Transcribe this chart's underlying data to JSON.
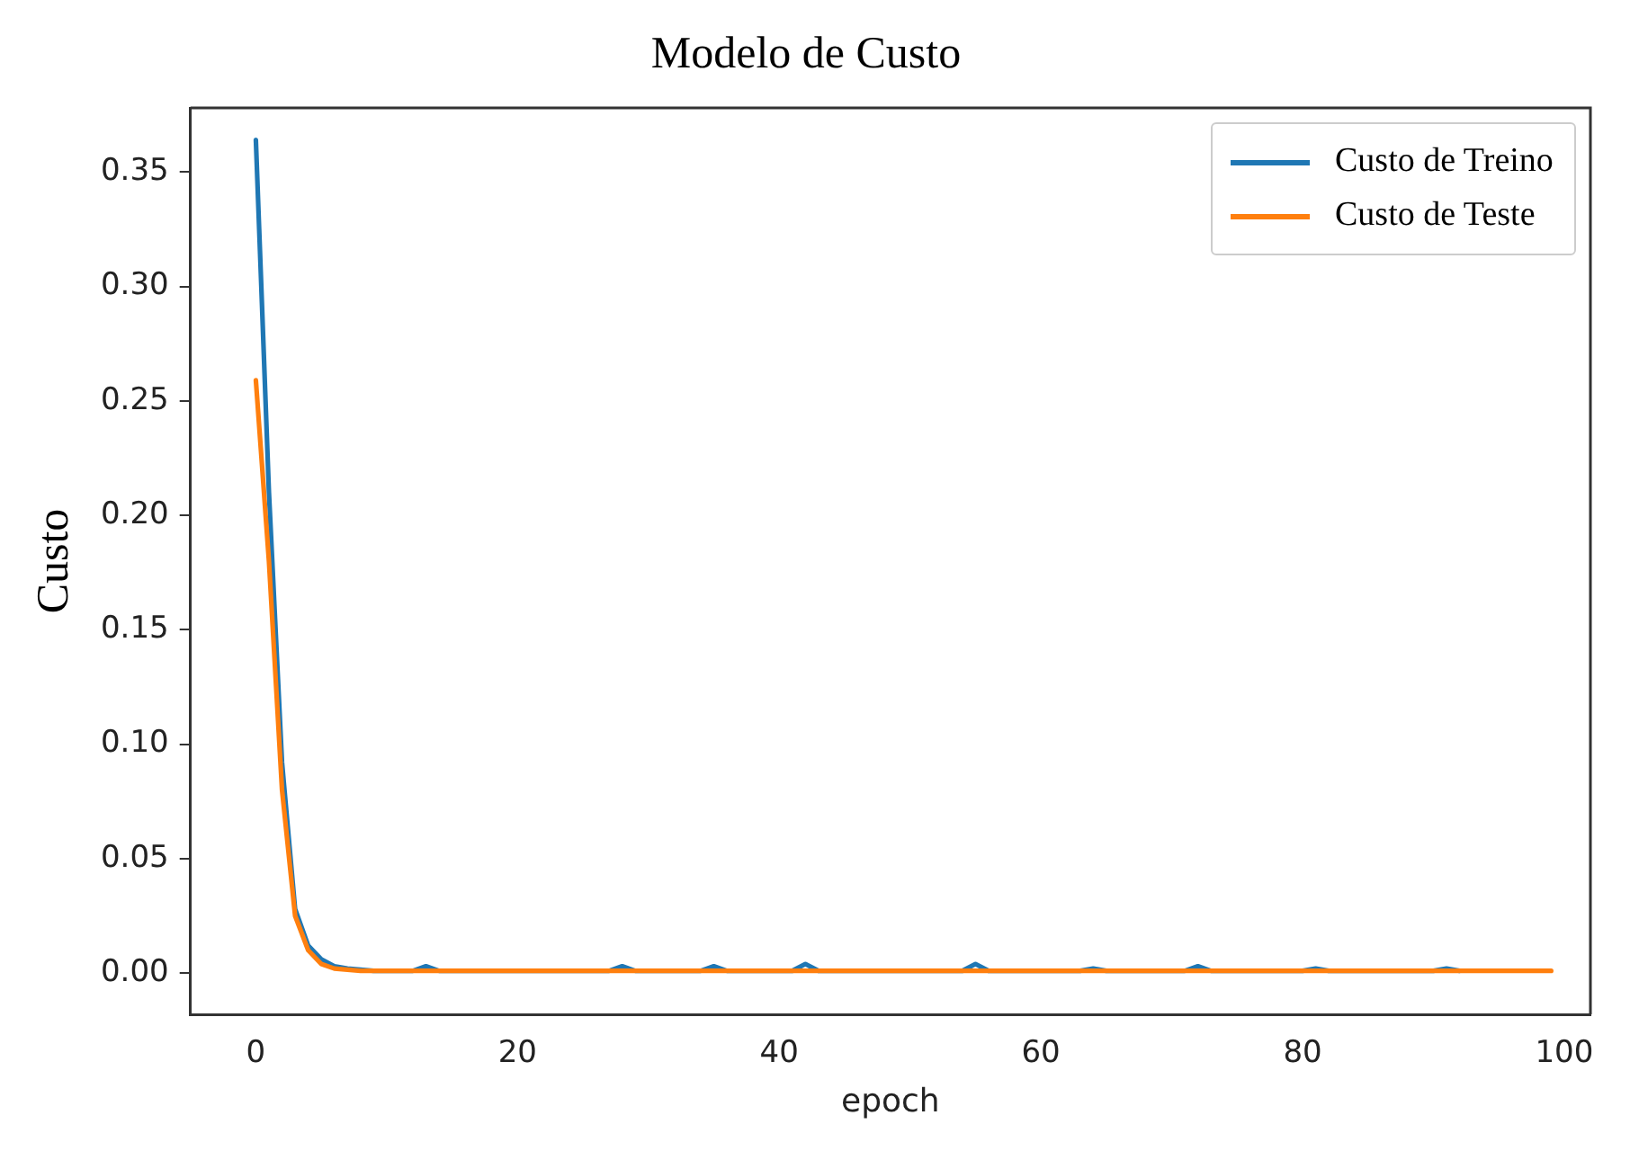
{
  "chart_data": {
    "type": "line",
    "title": "Modelo de Custo",
    "xlabel": "epoch",
    "ylabel": "Custo",
    "x": [
      0,
      1,
      2,
      3,
      4,
      5,
      6,
      7,
      8,
      9,
      10,
      11,
      12,
      13,
      14,
      15,
      16,
      17,
      18,
      19,
      20,
      21,
      22,
      23,
      24,
      25,
      26,
      27,
      28,
      29,
      30,
      31,
      32,
      33,
      34,
      35,
      36,
      37,
      38,
      39,
      40,
      41,
      42,
      43,
      44,
      45,
      46,
      47,
      48,
      49,
      50,
      51,
      52,
      53,
      54,
      55,
      56,
      57,
      58,
      59,
      60,
      61,
      62,
      63,
      64,
      65,
      66,
      67,
      68,
      69,
      70,
      71,
      72,
      73,
      74,
      75,
      76,
      77,
      78,
      79,
      80,
      81,
      82,
      83,
      84,
      85,
      86,
      87,
      88,
      89,
      90,
      91,
      92,
      93,
      94,
      95,
      96,
      97,
      98,
      99
    ],
    "series": [
      {
        "name": "Custo de Treino",
        "color": "#1f77b4",
        "values": [
          0.364,
          0.21,
          0.092,
          0.028,
          0.012,
          0.006,
          0.003,
          0.002,
          0.0015,
          0.001,
          null,
          null,
          0.001,
          0.003,
          0.001,
          null,
          null,
          null,
          null,
          null,
          null,
          null,
          null,
          null,
          null,
          null,
          null,
          0.001,
          0.003,
          0.001,
          null,
          null,
          null,
          null,
          0.001,
          0.003,
          0.001,
          null,
          null,
          null,
          null,
          0.001,
          0.004,
          0.001,
          null,
          null,
          null,
          null,
          null,
          null,
          null,
          null,
          null,
          null,
          0.001,
          0.004,
          0.001,
          null,
          null,
          null,
          null,
          null,
          null,
          0.001,
          0.002,
          0.001,
          null,
          null,
          null,
          null,
          null,
          0.001,
          0.003,
          0.001,
          null,
          null,
          null,
          null,
          null,
          null,
          0.001,
          0.002,
          0.001,
          null,
          null,
          null,
          null,
          null,
          null,
          null,
          0.001,
          0.002,
          0.001,
          null,
          null,
          null,
          null,
          null,
          null,
          null
        ]
      },
      {
        "name": "Custo de Teste",
        "color": "#ff7f0e",
        "values": [
          0.259,
          0.18,
          0.08,
          0.025,
          0.01,
          0.004,
          0.002,
          0.0015,
          0.001,
          0.001,
          0.001,
          0.001,
          0.001,
          0.001,
          0.001,
          0.001,
          0.001,
          0.001,
          0.001,
          0.001,
          0.001,
          0.001,
          0.001,
          0.001,
          0.001,
          0.001,
          0.001,
          0.001,
          0.001,
          0.001,
          0.001,
          0.001,
          0.001,
          0.001,
          0.001,
          0.001,
          0.001,
          0.001,
          0.001,
          0.001,
          0.001,
          0.001,
          0.001,
          0.001,
          0.001,
          0.001,
          0.001,
          0.001,
          0.001,
          0.001,
          0.001,
          0.001,
          0.001,
          0.001,
          0.001,
          0.001,
          0.001,
          0.001,
          0.001,
          0.001,
          0.001,
          0.001,
          0.001,
          0.001,
          0.001,
          0.001,
          0.001,
          0.001,
          0.001,
          0.001,
          0.001,
          0.001,
          0.001,
          0.001,
          0.001,
          0.001,
          0.001,
          0.001,
          0.001,
          0.001,
          0.001,
          0.001,
          0.001,
          0.001,
          0.001,
          0.001,
          0.001,
          0.001,
          0.001,
          0.001,
          0.001,
          0.001,
          0.001,
          0.001,
          0.001,
          0.001,
          0.001,
          0.001,
          0.001,
          0.001
        ]
      }
    ],
    "xlim": [
      -5,
      102
    ],
    "xticks": [
      0,
      20,
      40,
      60,
      80,
      100
    ],
    "ylim": [
      -0.018,
      0.378
    ],
    "yticks": [
      {
        "value": 0,
        "label": "0.00"
      },
      {
        "value": 0.05,
        "label": "0.05"
      },
      {
        "value": 0.1,
        "label": "0.10"
      },
      {
        "value": 0.15,
        "label": "0.15"
      },
      {
        "value": 0.2,
        "label": "0.20"
      },
      {
        "value": 0.25,
        "label": "0.25"
      },
      {
        "value": 0.3,
        "label": "0.30"
      },
      {
        "value": 0.35,
        "label": "0.35"
      }
    ],
    "grid": false,
    "legend": "top right",
    "marker": "none",
    "line_style": "solid"
  }
}
